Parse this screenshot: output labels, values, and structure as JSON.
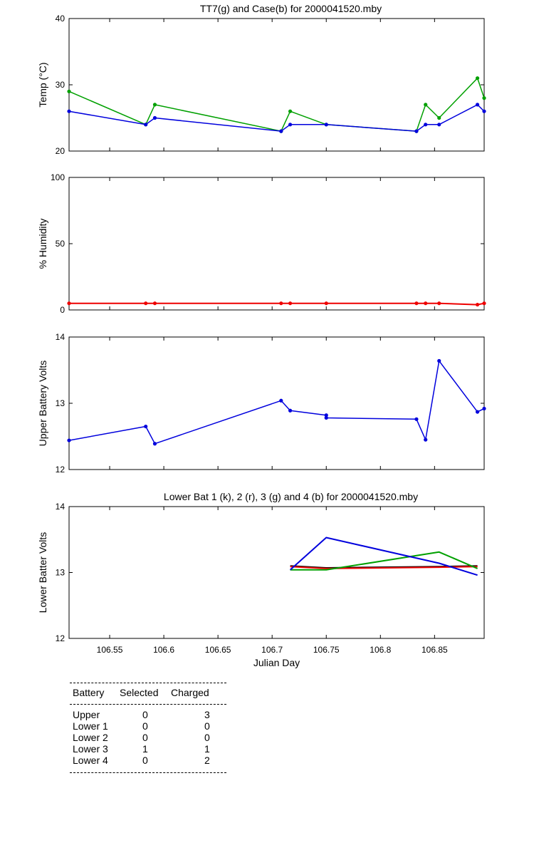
{
  "chart_data": [
    {
      "type": "line",
      "title": "TT7(g) and Case(b) for 2000041520.mby",
      "xlabel": "",
      "ylabel": "Temp  (°C)",
      "xlim": [
        106.5125,
        106.8958
      ],
      "ylim": [
        20,
        40
      ],
      "yticks": [
        20,
        30,
        40
      ],
      "grid": false,
      "series": [
        {
          "color": "#00a000",
          "x": [
            106.5125,
            106.5833,
            106.5917,
            106.7083,
            106.7167,
            106.75,
            106.8333,
            106.8417,
            106.8542,
            106.8896,
            106.8958
          ],
          "values": [
            29,
            24,
            27,
            23,
            26,
            24,
            23,
            27,
            25,
            31,
            28
          ]
        },
        {
          "color": "#0000dd",
          "x": [
            106.5125,
            106.5833,
            106.5917,
            106.7083,
            106.7167,
            106.75,
            106.8333,
            106.8417,
            106.8542,
            106.8896,
            106.8958
          ],
          "values": [
            26,
            24,
            25,
            23,
            24,
            24,
            23,
            24,
            24,
            27,
            26
          ]
        }
      ]
    },
    {
      "type": "line",
      "title": "",
      "xlabel": "",
      "ylabel": "% Humidity",
      "xlim": [
        106.5125,
        106.8958
      ],
      "ylim": [
        0,
        100
      ],
      "yticks": [
        0,
        50,
        100
      ],
      "grid": false,
      "series": [
        {
          "color": "#ee0000",
          "x": [
            106.5125,
            106.5833,
            106.5917,
            106.7083,
            106.7167,
            106.75,
            106.8333,
            106.8417,
            106.8542,
            106.8896,
            106.8958
          ],
          "values": [
            5,
            5,
            5,
            5,
            5,
            5,
            5,
            5,
            5,
            4,
            5
          ]
        }
      ]
    },
    {
      "type": "line",
      "title": "",
      "xlabel": "",
      "ylabel": "Upper Battery Volts",
      "xlim": [
        106.5125,
        106.8958
      ],
      "ylim": [
        12,
        14
      ],
      "yticks": [
        12,
        13,
        14
      ],
      "grid": false,
      "series": [
        {
          "color": "#0000dd",
          "x": [
            106.5125,
            106.5833,
            106.5917,
            106.7083,
            106.7167,
            106.75,
            106.75,
            106.8333,
            106.8417,
            106.8542,
            106.8896,
            106.8958
          ],
          "values": [
            12.44,
            12.65,
            12.39,
            13.04,
            12.89,
            12.82,
            12.78,
            12.76,
            12.45,
            13.64,
            12.87,
            12.92
          ]
        }
      ]
    },
    {
      "type": "line",
      "title": "Lower Bat 1 (k), 2 (r), 3 (g) and 4 (b) for 2000041520.mby",
      "xlabel": "Julian Day",
      "ylabel": "Lower Batter Volts",
      "xlim": [
        106.5125,
        106.8958
      ],
      "ylim": [
        12,
        14
      ],
      "yticks": [
        12,
        13,
        14
      ],
      "xticks": [
        106.55,
        106.6,
        106.65,
        106.7,
        106.75,
        106.8,
        106.85
      ],
      "xticklabels": [
        "106.55",
        "106.6",
        "106.65",
        "106.7",
        "106.75",
        "106.8",
        "106.85"
      ],
      "grid": false,
      "series": [
        {
          "color": "#000000",
          "x": [
            106.7167,
            106.75,
            106.8542,
            106.8896
          ],
          "values": [
            13.1,
            13.07,
            13.09,
            13.1
          ]
        },
        {
          "color": "#ee0000",
          "x": [
            106.7167,
            106.75,
            106.8542,
            106.8896
          ],
          "values": [
            13.09,
            13.06,
            13.08,
            13.09
          ]
        },
        {
          "color": "#00a000",
          "x": [
            106.7167,
            106.75,
            106.8542,
            106.8896
          ],
          "values": [
            13.04,
            13.04,
            13.31,
            13.06
          ]
        },
        {
          "color": "#0000dd",
          "x": [
            106.7167,
            106.75,
            106.8542,
            106.8896
          ],
          "values": [
            13.04,
            13.53,
            13.14,
            12.96
          ]
        }
      ]
    }
  ],
  "table": {
    "headers": [
      "Battery",
      "Selected",
      "Charged"
    ],
    "rows": [
      [
        "Upper",
        "0",
        "3"
      ],
      [
        "Lower 1",
        "0",
        "0"
      ],
      [
        "Lower 2",
        "0",
        "0"
      ],
      [
        "Lower 3",
        "1",
        "1"
      ],
      [
        "Lower 4",
        "0",
        "2"
      ]
    ]
  }
}
